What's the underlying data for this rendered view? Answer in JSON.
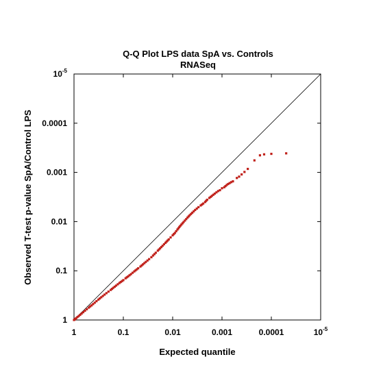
{
  "chart_data": {
    "type": "scatter",
    "title": "Q-Q Plot LPS data SpA vs. Controls",
    "subtitle": "RNASeq",
    "xlabel": "Expected quantile",
    "ylabel": "Observed T-test p-value SpA/Control LPS",
    "x_scale": "log-reversed",
    "y_scale": "log-reversed",
    "xlim": [
      1,
      1e-05
    ],
    "ylim": [
      1,
      1e-05
    ],
    "x_ticks": [
      {
        "value": 1,
        "label": "1",
        "sup": ""
      },
      {
        "value": 0.1,
        "label": "0.1",
        "sup": ""
      },
      {
        "value": 0.01,
        "label": "0.01",
        "sup": ""
      },
      {
        "value": 0.001,
        "label": "0.001",
        "sup": ""
      },
      {
        "value": 0.0001,
        "label": "0.0001",
        "sup": ""
      },
      {
        "value": 1e-05,
        "label": "10",
        "sup": "-5"
      }
    ],
    "y_ticks": [
      {
        "value": 1,
        "label": "1",
        "sup": ""
      },
      {
        "value": 0.1,
        "label": "0.1",
        "sup": ""
      },
      {
        "value": 0.01,
        "label": "0.01",
        "sup": ""
      },
      {
        "value": 0.001,
        "label": "0.001",
        "sup": ""
      },
      {
        "value": 0.0001,
        "label": "0.0001",
        "sup": ""
      },
      {
        "value": 1e-05,
        "label": "10",
        "sup": "-5"
      }
    ],
    "reference_line": {
      "from": [
        1,
        1
      ],
      "to": [
        1e-05,
        1e-05
      ],
      "color": "#000000"
    },
    "grid": false,
    "marker_color": "#c0201a",
    "series": [
      {
        "points": [
          [
            1.0,
            1.0
          ],
          [
            0.97,
            0.975
          ],
          [
            0.94,
            0.95
          ],
          [
            0.9,
            0.915
          ],
          [
            0.85,
            0.87
          ],
          [
            0.8,
            0.83
          ],
          [
            0.75,
            0.785
          ],
          [
            0.7,
            0.74
          ],
          [
            0.65,
            0.695
          ],
          [
            0.6,
            0.65
          ],
          [
            0.55,
            0.605
          ],
          [
            0.5,
            0.56
          ],
          [
            0.47,
            0.53
          ],
          [
            0.44,
            0.505
          ],
          [
            0.41,
            0.475
          ],
          [
            0.38,
            0.445
          ],
          [
            0.35,
            0.415
          ],
          [
            0.32,
            0.385
          ],
          [
            0.3,
            0.365
          ],
          [
            0.28,
            0.345
          ],
          [
            0.26,
            0.325
          ],
          [
            0.24,
            0.305
          ],
          [
            0.22,
            0.285
          ],
          [
            0.2,
            0.265
          ],
          [
            0.18,
            0.245
          ],
          [
            0.16,
            0.222
          ],
          [
            0.14,
            0.2
          ],
          [
            0.12,
            0.177
          ],
          [
            0.1,
            0.155
          ],
          [
            0.09,
            0.142
          ],
          [
            0.08,
            0.13
          ],
          [
            0.07,
            0.117
          ],
          [
            0.06,
            0.103
          ],
          [
            0.05,
            0.089
          ],
          [
            0.045,
            0.082
          ],
          [
            0.04,
            0.074
          ],
          [
            0.035,
            0.066
          ],
          [
            0.03,
            0.058
          ],
          [
            0.027,
            0.053
          ],
          [
            0.025,
            0.049
          ],
          [
            0.022,
            0.043
          ],
          [
            0.02,
            0.039
          ],
          [
            0.018,
            0.035
          ],
          [
            0.016,
            0.031
          ],
          [
            0.014,
            0.027
          ],
          [
            0.012,
            0.023
          ],
          [
            0.011,
            0.021
          ],
          [
            0.01,
            0.019
          ],
          [
            0.009,
            0.017
          ],
          [
            0.008,
            0.0145
          ],
          [
            0.007,
            0.0122
          ],
          [
            0.006,
            0.0102
          ],
          [
            0.005,
            0.0083
          ],
          [
            0.0045,
            0.0074
          ],
          [
            0.004,
            0.0066
          ],
          [
            0.0035,
            0.0058
          ],
          [
            0.003,
            0.0051
          ],
          [
            0.0027,
            0.0047
          ],
          [
            0.0024,
            0.0043
          ],
          [
            0.0022,
            0.004
          ],
          [
            0.002,
            0.0036
          ],
          [
            0.0018,
            0.0033
          ],
          [
            0.0016,
            0.003
          ],
          [
            0.0014,
            0.0027
          ],
          [
            0.0012,
            0.0024
          ],
          [
            0.0011,
            0.0023
          ],
          [
            0.001,
            0.0021
          ],
          [
            0.0009,
            0.002
          ],
          [
            0.00085,
            0.0019
          ],
          [
            0.0008,
            0.0018
          ],
          [
            0.00075,
            0.00172
          ],
          [
            0.0007,
            0.00165
          ],
          [
            0.00065,
            0.00158
          ],
          [
            0.0006,
            0.00152
          ],
          [
            0.0005,
            0.0013
          ],
          [
            0.00045,
            0.00122
          ],
          [
            0.0004,
            0.0011
          ],
          [
            0.00035,
            0.00098
          ],
          [
            0.0003,
            0.00085
          ],
          [
            0.00022,
            0.00057
          ],
          [
            0.00017,
            0.00045
          ],
          [
            0.00014,
            0.00043
          ],
          [
            0.0001,
            0.00042
          ],
          [
            5e-05,
            0.00041
          ]
        ]
      }
    ]
  }
}
